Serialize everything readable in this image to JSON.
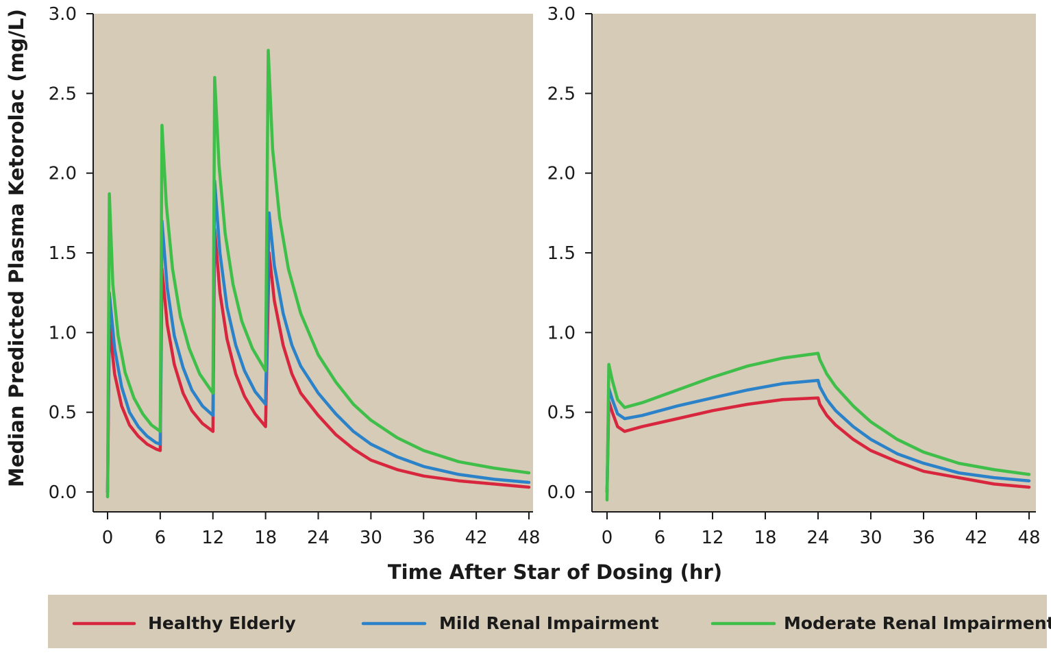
{
  "chart_data": [
    {
      "type": "line",
      "panel": "left",
      "ylabel": "Median Predicted Plasma Ketorolac (mg/L)",
      "xlim": [
        0,
        48
      ],
      "ylim": [
        0,
        3
      ],
      "xticks": [
        "0",
        "6",
        "12",
        "18",
        "24",
        "30",
        "36",
        "42",
        "48"
      ],
      "yticks": [
        "0.0",
        "0.5",
        "1.0",
        "1.5",
        "2.0",
        "2.5",
        "3.0"
      ],
      "series": [
        {
          "name": "Healthy Elderly",
          "color": "#d7263d",
          "points": [
            [
              0,
              0
            ],
            [
              0.2,
              1.05
            ],
            [
              0.8,
              0.74
            ],
            [
              1.6,
              0.54
            ],
            [
              2.5,
              0.42
            ],
            [
              3.5,
              0.35
            ],
            [
              4.5,
              0.3
            ],
            [
              5.5,
              0.27
            ],
            [
              6,
              0.26
            ],
            [
              6.2,
              1.4
            ],
            [
              6.8,
              1.05
            ],
            [
              7.6,
              0.8
            ],
            [
              8.6,
              0.62
            ],
            [
              9.6,
              0.51
            ],
            [
              10.8,
              0.43
            ],
            [
              12,
              0.38
            ],
            [
              12.2,
              1.65
            ],
            [
              12.8,
              1.25
            ],
            [
              13.6,
              0.96
            ],
            [
              14.6,
              0.74
            ],
            [
              15.6,
              0.6
            ],
            [
              16.8,
              0.49
            ],
            [
              18,
              0.41
            ],
            [
              18.4,
              1.5
            ],
            [
              19,
              1.2
            ],
            [
              20,
              0.92
            ],
            [
              21,
              0.74
            ],
            [
              22,
              0.62
            ],
            [
              24,
              0.48
            ],
            [
              26,
              0.36
            ],
            [
              28,
              0.27
            ],
            [
              30,
              0.2
            ],
            [
              33,
              0.14
            ],
            [
              36,
              0.1
            ],
            [
              40,
              0.07
            ],
            [
              44,
              0.05
            ],
            [
              48,
              0.03
            ]
          ]
        },
        {
          "name": "Mild Renal Impairment",
          "color": "#2c82c9",
          "points": [
            [
              0,
              0
            ],
            [
              0.2,
              1.25
            ],
            [
              0.8,
              0.9
            ],
            [
              1.6,
              0.66
            ],
            [
              2.5,
              0.5
            ],
            [
              3.5,
              0.41
            ],
            [
              4.5,
              0.35
            ],
            [
              5.5,
              0.31
            ],
            [
              6,
              0.3
            ],
            [
              6.2,
              1.7
            ],
            [
              6.8,
              1.28
            ],
            [
              7.6,
              0.98
            ],
            [
              8.6,
              0.78
            ],
            [
              9.6,
              0.64
            ],
            [
              10.8,
              0.54
            ],
            [
              12,
              0.48
            ],
            [
              12.2,
              1.95
            ],
            [
              12.8,
              1.5
            ],
            [
              13.6,
              1.16
            ],
            [
              14.6,
              0.92
            ],
            [
              15.6,
              0.76
            ],
            [
              16.8,
              0.63
            ],
            [
              18,
              0.55
            ],
            [
              18.4,
              1.75
            ],
            [
              19,
              1.42
            ],
            [
              20,
              1.12
            ],
            [
              21,
              0.92
            ],
            [
              22,
              0.79
            ],
            [
              24,
              0.62
            ],
            [
              26,
              0.49
            ],
            [
              28,
              0.38
            ],
            [
              30,
              0.3
            ],
            [
              33,
              0.22
            ],
            [
              36,
              0.16
            ],
            [
              40,
              0.11
            ],
            [
              44,
              0.08
            ],
            [
              48,
              0.06
            ]
          ]
        },
        {
          "name": "Moderate Renal Impairment",
          "color": "#3fbf4a",
          "points": [
            [
              0,
              -0.03
            ],
            [
              0.2,
              1.87
            ],
            [
              0.6,
              1.3
            ],
            [
              1.2,
              0.98
            ],
            [
              2,
              0.75
            ],
            [
              3,
              0.59
            ],
            [
              4,
              0.49
            ],
            [
              5,
              0.42
            ],
            [
              6,
              0.38
            ],
            [
              6.2,
              2.3
            ],
            [
              6.7,
              1.8
            ],
            [
              7.4,
              1.4
            ],
            [
              8.3,
              1.1
            ],
            [
              9.3,
              0.9
            ],
            [
              10.5,
              0.74
            ],
            [
              12,
              0.62
            ],
            [
              12.2,
              2.6
            ],
            [
              12.7,
              2.05
            ],
            [
              13.4,
              1.62
            ],
            [
              14.3,
              1.3
            ],
            [
              15.3,
              1.07
            ],
            [
              16.5,
              0.9
            ],
            [
              18,
              0.76
            ],
            [
              18.3,
              2.77
            ],
            [
              18.8,
              2.15
            ],
            [
              19.6,
              1.72
            ],
            [
              20.6,
              1.4
            ],
            [
              22,
              1.12
            ],
            [
              24,
              0.86
            ],
            [
              26,
              0.69
            ],
            [
              28,
              0.55
            ],
            [
              30,
              0.45
            ],
            [
              33,
              0.34
            ],
            [
              36,
              0.26
            ],
            [
              40,
              0.19
            ],
            [
              44,
              0.15
            ],
            [
              48,
              0.12
            ]
          ]
        }
      ]
    },
    {
      "type": "line",
      "panel": "right",
      "xlim": [
        0,
        48
      ],
      "ylim": [
        0,
        3
      ],
      "xticks": [
        "0",
        "6",
        "12",
        "18",
        "24",
        "30",
        "36",
        "42",
        "48"
      ],
      "yticks": [
        "0.0",
        "0.5",
        "1.0",
        "1.5",
        "2.0",
        "2.5",
        "3.0"
      ],
      "series": [
        {
          "name": "Healthy Elderly",
          "color": "#d7263d",
          "points": [
            [
              0,
              0
            ],
            [
              0.2,
              0.57
            ],
            [
              0.6,
              0.5
            ],
            [
              1.2,
              0.41
            ],
            [
              2,
              0.38
            ],
            [
              4,
              0.41
            ],
            [
              8,
              0.46
            ],
            [
              12,
              0.51
            ],
            [
              16,
              0.55
            ],
            [
              20,
              0.58
            ],
            [
              24,
              0.59
            ],
            [
              24.2,
              0.55
            ],
            [
              25,
              0.48
            ],
            [
              26,
              0.42
            ],
            [
              28,
              0.33
            ],
            [
              30,
              0.26
            ],
            [
              33,
              0.19
            ],
            [
              36,
              0.13
            ],
            [
              40,
              0.09
            ],
            [
              44,
              0.05
            ],
            [
              48,
              0.03
            ]
          ]
        },
        {
          "name": "Mild Renal Impairment",
          "color": "#2c82c9",
          "points": [
            [
              0,
              0
            ],
            [
              0.2,
              0.65
            ],
            [
              0.6,
              0.58
            ],
            [
              1.2,
              0.49
            ],
            [
              2,
              0.46
            ],
            [
              4,
              0.48
            ],
            [
              8,
              0.54
            ],
            [
              12,
              0.59
            ],
            [
              16,
              0.64
            ],
            [
              20,
              0.68
            ],
            [
              24,
              0.7
            ],
            [
              24.2,
              0.66
            ],
            [
              25,
              0.58
            ],
            [
              26,
              0.51
            ],
            [
              28,
              0.41
            ],
            [
              30,
              0.33
            ],
            [
              33,
              0.24
            ],
            [
              36,
              0.18
            ],
            [
              40,
              0.12
            ],
            [
              44,
              0.09
            ],
            [
              48,
              0.07
            ]
          ]
        },
        {
          "name": "Moderate Renal Impairment",
          "color": "#3fbf4a",
          "points": [
            [
              0,
              -0.05
            ],
            [
              0.2,
              0.8
            ],
            [
              0.6,
              0.7
            ],
            [
              1.2,
              0.58
            ],
            [
              2,
              0.53
            ],
            [
              4,
              0.56
            ],
            [
              8,
              0.64
            ],
            [
              12,
              0.72
            ],
            [
              16,
              0.79
            ],
            [
              20,
              0.84
            ],
            [
              24,
              0.87
            ],
            [
              24.2,
              0.83
            ],
            [
              25,
              0.74
            ],
            [
              26,
              0.66
            ],
            [
              28,
              0.54
            ],
            [
              30,
              0.44
            ],
            [
              33,
              0.33
            ],
            [
              36,
              0.25
            ],
            [
              40,
              0.18
            ],
            [
              44,
              0.14
            ],
            [
              48,
              0.11
            ]
          ]
        }
      ]
    }
  ],
  "xlabel": "Time After Star of Dosing (hr)",
  "legend": [
    {
      "label": "Healthy Elderly",
      "color": "#d7263d"
    },
    {
      "label": "Mild Renal Impairment",
      "color": "#2c82c9"
    },
    {
      "label": "Moderate Renal Impairment",
      "color": "#3fbf4a"
    }
  ],
  "colors": {
    "plot_background": "#d5cbb6",
    "legend_background": "#d5cbb6",
    "axis": "#1a1a1a"
  }
}
